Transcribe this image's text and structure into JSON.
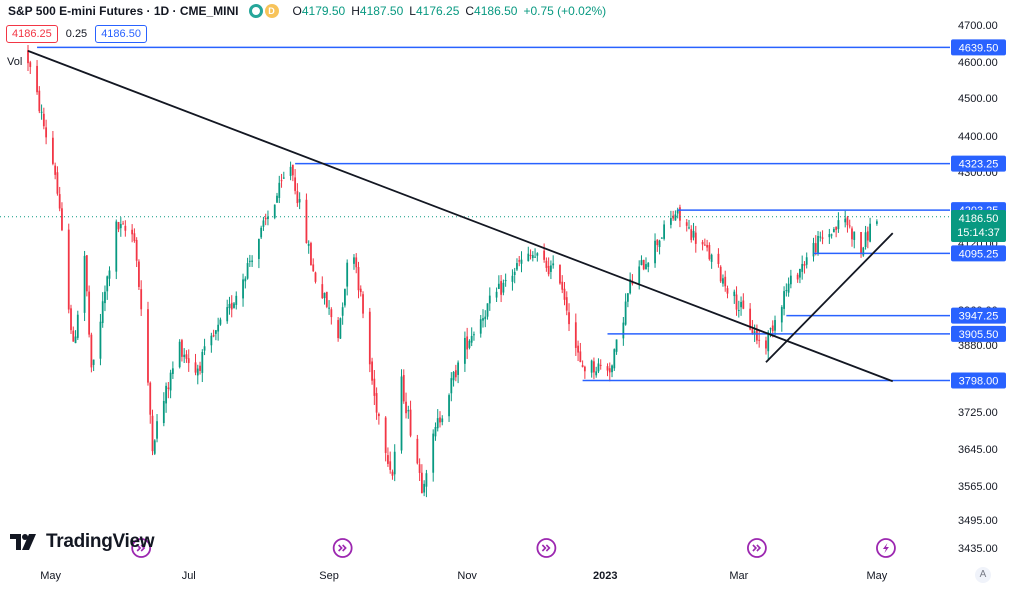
{
  "header": {
    "title": "S&P 500 E-mini Futures · 1D · CME_MINI",
    "badge_letter": "D",
    "ohlc": [
      {
        "k": "O",
        "v": "4179.50"
      },
      {
        "k": "H",
        "v": "4187.50"
      },
      {
        "k": "L",
        "v": "4176.25"
      },
      {
        "k": "C",
        "v": "4186.50"
      }
    ],
    "change": "+0.75 (+0.02%)"
  },
  "quote": {
    "sell": "4186.25",
    "spread": "0.25",
    "buy": "4186.50"
  },
  "volume_label": "Vol",
  "brand": "TradingView",
  "current": {
    "price": "4186.50",
    "countdown": "15:14:37"
  },
  "auto_label": "A",
  "colors": {
    "up": "#089981",
    "down": "#f23645",
    "hline": "#2962ff",
    "trend": "#131722",
    "event": "#9c27b0"
  },
  "chart_data": {
    "type": "candlestick",
    "yaxis": {
      "min": 3420,
      "max": 4720,
      "ticks": [
        "4700.00",
        "4600.00",
        "4500.00",
        "4400.00",
        "4300.00",
        "4120.00",
        "3960.00",
        "3880.00",
        "3725.00",
        "3645.00",
        "3565.00",
        "3495.00",
        "3435.00"
      ]
    },
    "xaxis": {
      "labels": [
        "May",
        "Jul",
        "Sep",
        "Nov",
        "2023",
        "Mar",
        "May"
      ]
    },
    "horizontal_levels": [
      "4639.50",
      "4323.25",
      "4203.25",
      "4095.25",
      "3947.25",
      "3905.50",
      "3798.00"
    ],
    "trendlines": [
      {
        "from": [
          "2022-04-21",
          4630
        ],
        "to": [
          "2023-05-08",
          3796
        ]
      },
      {
        "from": [
          "2023-03-13",
          3840
        ],
        "to": [
          "2023-05-08",
          4145
        ]
      }
    ],
    "anchors": [
      [
        "2022-04-21",
        4630
      ],
      [
        "2022-05-04",
        4300
      ],
      [
        "2022-05-12",
        3870
      ],
      [
        "2022-05-17",
        4090
      ],
      [
        "2022-05-20",
        3810
      ],
      [
        "2022-05-31",
        4160
      ],
      [
        "2022-06-08",
        4140
      ],
      [
        "2022-06-16",
        3660
      ],
      [
        "2022-06-28",
        3880
      ],
      [
        "2022-07-05",
        3820
      ],
      [
        "2022-07-20",
        3960
      ],
      [
        "2022-08-16",
        4320
      ],
      [
        "2022-08-26",
        4050
      ],
      [
        "2022-09-06",
        3905
      ],
      [
        "2022-09-12",
        4140
      ],
      [
        "2022-09-22",
        3760
      ],
      [
        "2022-09-30",
        3590
      ],
      [
        "2022-10-04",
        3790
      ],
      [
        "2022-10-13",
        3570
      ],
      [
        "2022-10-20",
        3700
      ],
      [
        "2022-11-01",
        3880
      ],
      [
        "2022-11-10",
        3960
      ],
      [
        "2022-11-25",
        4070
      ],
      [
        "2022-12-01",
        4090
      ],
      [
        "2022-12-13",
        4040
      ],
      [
        "2022-12-22",
        3830
      ],
      [
        "2023-01-05",
        3830
      ],
      [
        "2023-01-13",
        4020
      ],
      [
        "2023-02-02",
        4195
      ],
      [
        "2023-02-17",
        4090
      ],
      [
        "2023-03-02",
        3970
      ],
      [
        "2023-03-13",
        3870
      ],
      [
        "2023-03-22",
        4000
      ],
      [
        "2023-04-04",
        4110
      ],
      [
        "2023-04-18",
        4180
      ],
      [
        "2023-04-25",
        4100
      ],
      [
        "2023-05-01",
        4186
      ]
    ],
    "events": [
      "2022-06-10",
      "2022-09-07",
      "2022-12-06",
      "2023-03-09",
      "2023-05-05"
    ]
  }
}
